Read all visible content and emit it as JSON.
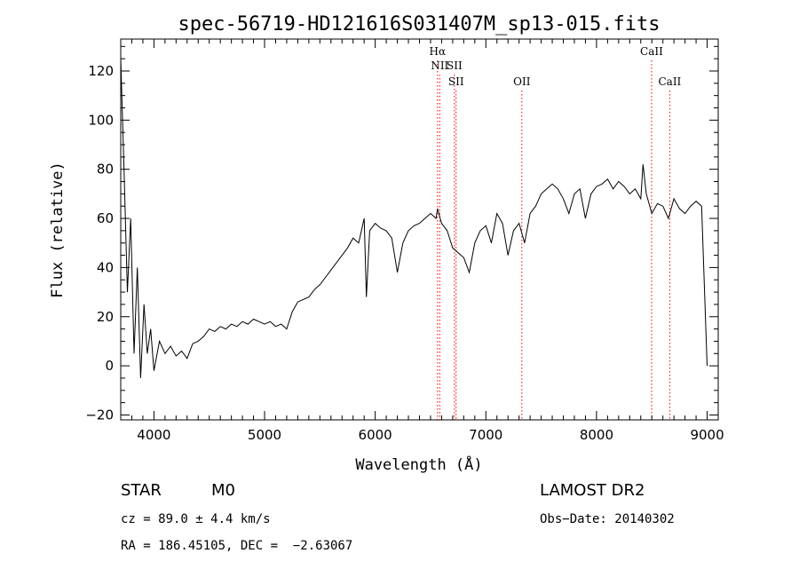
{
  "chart_data": {
    "type": "line",
    "title": "spec-56719-HD121616S031407M_sp13-015.fits",
    "xlabel": "Wavelength (Å)",
    "ylabel": "Flux (relative)",
    "xlim": [
      3700,
      9100
    ],
    "ylim": [
      -22,
      133
    ],
    "x_ticks": [
      4000,
      5000,
      6000,
      7000,
      8000,
      9000
    ],
    "y_ticks": [
      -20,
      0,
      20,
      40,
      60,
      80,
      100,
      120
    ],
    "x_tick_labels": [
      "4000",
      "5000",
      "6000",
      "7000",
      "8000",
      "9000"
    ],
    "y_tick_labels": [
      "−20",
      "0",
      "20",
      "40",
      "60",
      "80",
      "100",
      "120"
    ],
    "grid": false,
    "series": [
      {
        "color": "#000000",
        "x": [
          3700,
          3730,
          3760,
          3790,
          3820,
          3850,
          3880,
          3910,
          3940,
          3970,
          4000,
          4050,
          4100,
          4150,
          4200,
          4250,
          4300,
          4350,
          4400,
          4450,
          4500,
          4550,
          4600,
          4650,
          4700,
          4750,
          4800,
          4850,
          4900,
          4950,
          5000,
          5050,
          5100,
          5150,
          5200,
          5250,
          5300,
          5350,
          5400,
          5450,
          5500,
          5550,
          5600,
          5650,
          5700,
          5750,
          5800,
          5850,
          5900,
          5920,
          5950,
          6000,
          6050,
          6100,
          6150,
          6200,
          6250,
          6300,
          6350,
          6400,
          6450,
          6500,
          6550,
          6563,
          6600,
          6650,
          6700,
          6750,
          6800,
          6850,
          6900,
          6950,
          7000,
          7050,
          7100,
          7150,
          7200,
          7250,
          7300,
          7350,
          7400,
          7450,
          7500,
          7550,
          7600,
          7650,
          7700,
          7750,
          7800,
          7850,
          7900,
          7950,
          8000,
          8050,
          8100,
          8150,
          8200,
          8250,
          8300,
          8350,
          8400,
          8420,
          8450,
          8500,
          8550,
          8600,
          8650,
          8700,
          8750,
          8800,
          8850,
          8900,
          8950,
          9000
        ],
        "values": [
          125,
          80,
          30,
          60,
          5,
          40,
          -5,
          25,
          5,
          15,
          -2,
          10,
          5,
          8,
          4,
          6,
          3,
          9,
          10,
          12,
          15,
          14,
          16,
          15,
          17,
          16,
          18,
          17,
          19,
          18,
          17,
          18,
          16,
          17,
          15,
          22,
          26,
          27,
          28,
          31,
          33,
          36,
          39,
          42,
          45,
          48,
          52,
          50,
          60,
          28,
          55,
          58,
          56,
          55,
          52,
          38,
          50,
          55,
          57,
          58,
          60,
          62,
          60,
          64,
          58,
          55,
          48,
          46,
          44,
          38,
          50,
          55,
          57,
          50,
          62,
          58,
          45,
          55,
          58,
          50,
          62,
          65,
          70,
          72,
          74,
          72,
          68,
          62,
          70,
          72,
          60,
          70,
          73,
          74,
          76,
          72,
          75,
          73,
          70,
          72,
          68,
          82,
          70,
          62,
          66,
          65,
          60,
          68,
          64,
          62,
          65,
          67,
          65,
          0
        ]
      }
    ],
    "spectral_lines": [
      {
        "name": "Hα",
        "wavelength": 6563,
        "row": 1
      },
      {
        "name": "NII",
        "wavelength": 6583,
        "row": 2
      },
      {
        "name": "SII",
        "wavelength": 6716,
        "row": 2
      },
      {
        "name": "SII",
        "wavelength": 6731,
        "row": 3
      },
      {
        "name": "OII",
        "wavelength": 7325,
        "row": 3
      },
      {
        "name": "CaII",
        "wavelength": 8498,
        "row": 1
      },
      {
        "name": "CaII",
        "wavelength": 8662,
        "row": 3
      }
    ],
    "line_marker_color": "#ff0000"
  },
  "info": {
    "object_class": "STAR",
    "subclass": "M0",
    "survey": "LAMOST DR2",
    "cz": "cz = 89.0 ± 4.4 km/s",
    "obs_date": "Obs−Date: 20140302",
    "coords": "RA = 186.45105, DEC =  −2.63067"
  }
}
